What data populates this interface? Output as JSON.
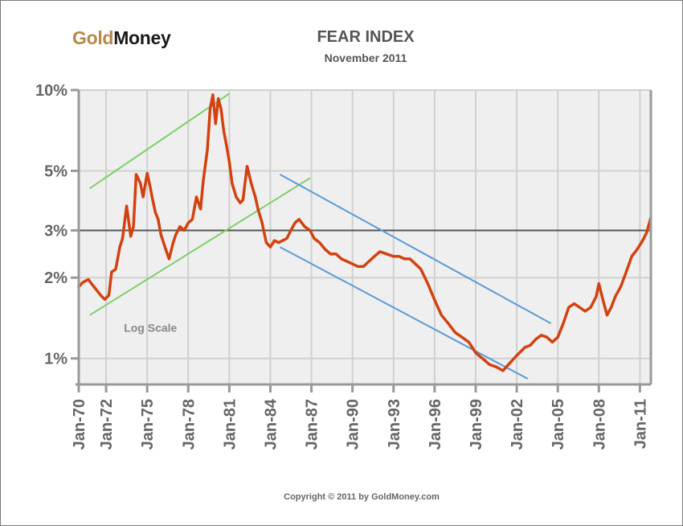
{
  "header": {
    "logo_gold": "Gold",
    "logo_money": "Money"
  },
  "footer": {
    "copyright": "Copyright © 2011 by GoldMoney.com"
  },
  "colors": {
    "series": "#d2420f",
    "green_channel": "#7fd06a",
    "blue_channel": "#5b9bd5",
    "plot_background": "#efefef",
    "grid": "#d0d0d0",
    "reference_line": "#555555"
  },
  "chart_data": {
    "type": "line",
    "title": "FEAR INDEX",
    "subtitle": "November 2011",
    "xlabel": "",
    "ylabel": "",
    "y_scale": "log",
    "ylim": [
      0.8,
      10
    ],
    "xlim": [
      1970.0,
      2011.8
    ],
    "grid": true,
    "y_ticks": [
      {
        "value": 10,
        "label": "10%"
      },
      {
        "value": 5,
        "label": "5%"
      },
      {
        "value": 3,
        "label": "3%"
      },
      {
        "value": 2,
        "label": "2%"
      },
      {
        "value": 1,
        "label": "1%"
      }
    ],
    "x_ticks": [
      {
        "value": 1970,
        "label": "Jan-70"
      },
      {
        "value": 1972,
        "label": "Jan-72"
      },
      {
        "value": 1975,
        "label": "Jan-75"
      },
      {
        "value": 1978,
        "label": "Jan-78"
      },
      {
        "value": 1981,
        "label": "Jan-81"
      },
      {
        "value": 1984,
        "label": "Jan-84"
      },
      {
        "value": 1987,
        "label": "Jan-87"
      },
      {
        "value": 1990,
        "label": "Jan-90"
      },
      {
        "value": 1993,
        "label": "Jan-93"
      },
      {
        "value": 1996,
        "label": "Jan-96"
      },
      {
        "value": 1999,
        "label": "Jan-99"
      },
      {
        "value": 2002,
        "label": "Jan-02"
      },
      {
        "value": 2005,
        "label": "Jan-05"
      },
      {
        "value": 2008,
        "label": "Jan-08"
      },
      {
        "value": 2011,
        "label": "Jan-11"
      }
    ],
    "reference_lines": [
      {
        "y": 3
      }
    ],
    "annotations": [
      {
        "text": "Log Scale",
        "x": 1973.3,
        "y": 1.3
      }
    ],
    "channels": [
      {
        "color": "green",
        "segments": [
          [
            1970.8,
            4.3,
            1981.0,
            9.7
          ],
          [
            1970.8,
            1.45,
            1986.9,
            4.7
          ]
        ]
      },
      {
        "color": "blue",
        "segments": [
          [
            1984.7,
            4.85,
            2004.5,
            1.35
          ],
          [
            1984.7,
            2.6,
            2002.8,
            0.84
          ]
        ]
      }
    ],
    "series": [
      {
        "x": [
          1970.0,
          1970.3,
          1970.7,
          1971.0,
          1971.3,
          1971.6,
          1971.9,
          1972.2,
          1972.4,
          1972.7,
          1973.0,
          1973.2,
          1973.5,
          1973.8,
          1974.0,
          1974.2,
          1974.5,
          1974.7,
          1975.0,
          1975.2,
          1975.4,
          1975.6,
          1975.8,
          1976.0,
          1976.3,
          1976.6,
          1976.9,
          1977.1,
          1977.4,
          1977.7,
          1978.0,
          1978.3,
          1978.6,
          1978.9,
          1979.1,
          1979.4,
          1979.6,
          1979.8,
          1980.0,
          1980.2,
          1980.4,
          1980.6,
          1980.8,
          1981.0,
          1981.2,
          1981.5,
          1981.8,
          1982.0,
          1982.3,
          1982.6,
          1982.9,
          1983.1,
          1983.4,
          1983.7,
          1984.0,
          1984.3,
          1984.6,
          1984.9,
          1985.2,
          1985.5,
          1985.8,
          1986.1,
          1986.5,
          1986.9,
          1987.2,
          1987.6,
          1988.0,
          1988.4,
          1988.8,
          1989.2,
          1989.6,
          1990.0,
          1990.4,
          1990.8,
          1991.2,
          1991.6,
          1992.0,
          1992.5,
          1993.0,
          1993.4,
          1993.8,
          1994.2,
          1994.6,
          1995.0,
          1995.5,
          1996.0,
          1996.5,
          1997.0,
          1997.5,
          1998.0,
          1998.5,
          1999.0,
          1999.5,
          2000.0,
          2000.5,
          2001.0,
          2001.4,
          2001.8,
          2002.2,
          2002.6,
          2003.0,
          2003.4,
          2003.8,
          2004.2,
          2004.6,
          2005.0,
          2005.4,
          2005.8,
          2006.2,
          2006.6,
          2007.0,
          2007.4,
          2007.8,
          2008.0,
          2008.3,
          2008.6,
          2008.9,
          2009.2,
          2009.6,
          2010.0,
          2010.4,
          2010.8,
          2011.2,
          2011.5,
          2011.8
        ],
        "values": [
          1.85,
          1.92,
          1.97,
          1.88,
          1.8,
          1.72,
          1.66,
          1.72,
          2.1,
          2.15,
          2.6,
          2.8,
          3.7,
          2.85,
          3.1,
          4.85,
          4.5,
          4.0,
          4.9,
          4.4,
          3.9,
          3.5,
          3.3,
          2.9,
          2.6,
          2.35,
          2.7,
          2.9,
          3.1,
          3.0,
          3.2,
          3.3,
          4.0,
          3.6,
          4.6,
          6.0,
          8.5,
          9.6,
          7.5,
          9.3,
          8.5,
          7.0,
          6.2,
          5.4,
          4.5,
          4.0,
          3.8,
          3.9,
          5.2,
          4.5,
          4.0,
          3.6,
          3.2,
          2.7,
          2.6,
          2.75,
          2.7,
          2.75,
          2.8,
          3.0,
          3.2,
          3.3,
          3.1,
          3.0,
          2.8,
          2.7,
          2.55,
          2.45,
          2.45,
          2.35,
          2.3,
          2.25,
          2.2,
          2.2,
          2.3,
          2.4,
          2.5,
          2.45,
          2.4,
          2.4,
          2.35,
          2.35,
          2.25,
          2.15,
          1.9,
          1.65,
          1.45,
          1.35,
          1.25,
          1.2,
          1.15,
          1.05,
          1.0,
          0.95,
          0.93,
          0.9,
          0.95,
          1.0,
          1.05,
          1.1,
          1.12,
          1.18,
          1.22,
          1.2,
          1.15,
          1.2,
          1.35,
          1.55,
          1.6,
          1.55,
          1.5,
          1.55,
          1.7,
          1.9,
          1.65,
          1.45,
          1.55,
          1.7,
          1.85,
          2.1,
          2.4,
          2.55,
          2.75,
          2.95,
          3.35
        ]
      }
    ]
  }
}
